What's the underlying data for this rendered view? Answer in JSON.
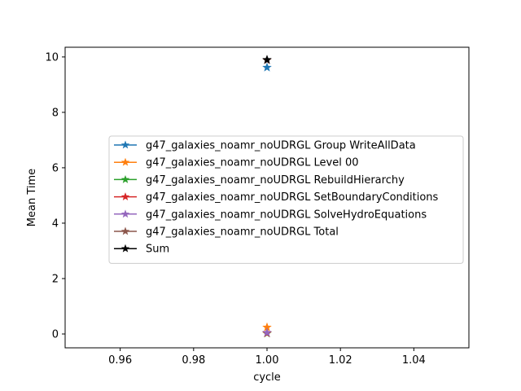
{
  "chart_data": {
    "type": "line",
    "title": "",
    "xlabel": "cycle",
    "ylabel": "Mean Time",
    "xlim": [
      0.945,
      1.055
    ],
    "ylim": [
      -0.5,
      10.35
    ],
    "x_ticks": [
      0.96,
      0.98,
      1.0,
      1.02,
      1.04
    ],
    "x_tick_labels": [
      "0.96",
      "0.98",
      "1.00",
      "1.02",
      "1.04"
    ],
    "y_ticks": [
      0,
      2,
      4,
      6,
      8,
      10
    ],
    "y_tick_labels": [
      "0",
      "2",
      "4",
      "6",
      "8",
      "10"
    ],
    "grid": false,
    "legend_position": "center-right",
    "marker": "star",
    "series": [
      {
        "name": "g47_galaxies_noamr_noUDRGL Group WriteAllData",
        "color": "#1f77b4",
        "x": [
          1.0
        ],
        "y": [
          9.62
        ]
      },
      {
        "name": "g47_galaxies_noamr_noUDRGL Level 00",
        "color": "#ff7f0e",
        "x": [
          1.0
        ],
        "y": [
          0.24
        ]
      },
      {
        "name": "g47_galaxies_noamr_noUDRGL RebuildHierarchy",
        "color": "#2ca02c",
        "x": [
          1.0
        ],
        "y": [
          0.02
        ]
      },
      {
        "name": "g47_galaxies_noamr_noUDRGL SetBoundaryConditions",
        "color": "#d62728",
        "x": [
          1.0
        ],
        "y": [
          0.03
        ]
      },
      {
        "name": "g47_galaxies_noamr_noUDRGL SolveHydroEquations",
        "color": "#9467bd",
        "x": [
          1.0
        ],
        "y": [
          0.05
        ]
      },
      {
        "name": "g47_galaxies_noamr_noUDRGL Total",
        "color": "#8c564b",
        "x": [
          1.0
        ],
        "y": [
          9.88
        ]
      },
      {
        "name": "Sum",
        "color": "#000000",
        "x": [
          1.0
        ],
        "y": [
          9.9
        ]
      }
    ]
  }
}
